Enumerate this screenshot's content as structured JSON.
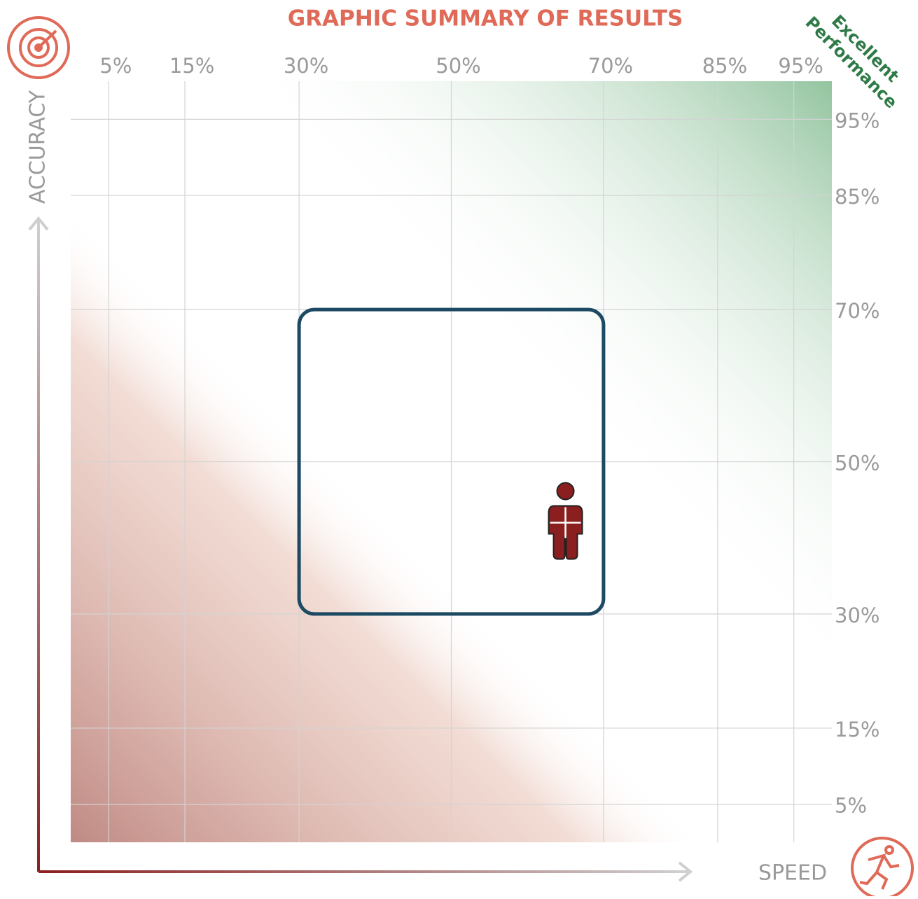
{
  "chart_data": {
    "type": "scatter",
    "title": "GRAPHIC SUMMARY OF RESULTS",
    "x_label": "SPEED",
    "y_label": "ACCURACY",
    "annotation": "Excellent Performance",
    "xlim": [
      0,
      100
    ],
    "ylim": [
      0,
      100
    ],
    "xticks": [
      {
        "value": 5,
        "label": "5%"
      },
      {
        "value": 15,
        "label": "15%"
      },
      {
        "value": 30,
        "label": "30%"
      },
      {
        "value": 50,
        "label": "50%"
      },
      {
        "value": 70,
        "label": "70%"
      },
      {
        "value": 85,
        "label": "85%"
      },
      {
        "value": 95,
        "label": "95%"
      }
    ],
    "yticks": [
      {
        "value": 5,
        "label": "5%"
      },
      {
        "value": 15,
        "label": "15%"
      },
      {
        "value": 30,
        "label": "30%"
      },
      {
        "value": 50,
        "label": "50%"
      },
      {
        "value": 70,
        "label": "70%"
      },
      {
        "value": 85,
        "label": "85%"
      },
      {
        "value": 95,
        "label": "95%"
      }
    ],
    "range_box": {
      "x": [
        30,
        70
      ],
      "y": [
        30,
        70
      ],
      "color": "#1d4a63"
    },
    "x": [
      65
    ],
    "values": [
      42
    ],
    "color": "#8b1f1f",
    "grid": true
  }
}
